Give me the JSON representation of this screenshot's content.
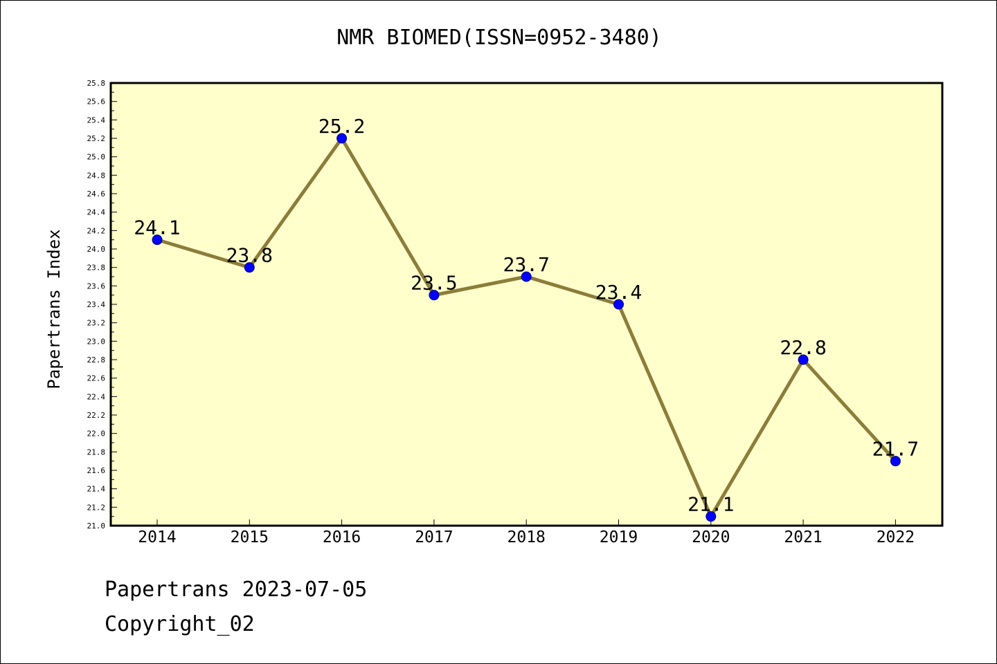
{
  "chart_data": {
    "type": "line",
    "title": "NMR BIOMED(ISSN=0952-3480)",
    "ylabel": "Papertrans Index",
    "xlabel": "",
    "categories": [
      "2014",
      "2015",
      "2016",
      "2017",
      "2018",
      "2019",
      "2020",
      "2021",
      "2022"
    ],
    "series": [
      {
        "values": [
          24.1,
          23.8,
          25.2,
          23.5,
          23.7,
          23.4,
          21.1,
          22.8,
          21.7
        ]
      }
    ],
    "data_labels": [
      "24.1",
      "23.8",
      "25.2",
      "23.5",
      "23.7",
      "23.4",
      "21.1",
      "22.8",
      "21.7"
    ],
    "ylim": [
      21.0,
      25.8
    ],
    "ytick_step": 0.2,
    "grid": false,
    "legend": "none",
    "colors": {
      "plot_background": "#ffffcc",
      "line": "#8b7d3a",
      "marker": "#0000ff"
    }
  },
  "footer": {
    "date_text": "Papertrans 2023-07-05",
    "copyright_text": "Copyright_02"
  }
}
